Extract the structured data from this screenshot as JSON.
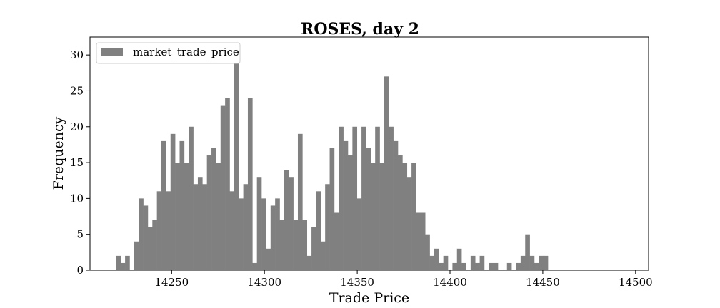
{
  "chart_data": {
    "type": "bar",
    "title": "ROSES, day 2",
    "xlabel": "Trade Price",
    "ylabel": "Frequency",
    "xlim": [
      14206,
      14507
    ],
    "ylim": [
      0,
      32.5
    ],
    "xticks": [
      14250,
      14300,
      14350,
      14400,
      14450,
      14500
    ],
    "yticks": [
      0,
      5,
      10,
      15,
      20,
      25,
      30
    ],
    "grid": false,
    "legend_position": "top-left",
    "bin_start": 14220,
    "bin_width": 2.45,
    "series": [
      {
        "name": "market_trade_price",
        "color": "#808080",
        "values": [
          2,
          1,
          2,
          0,
          4,
          10,
          9,
          6,
          7,
          11,
          18,
          11,
          19,
          15,
          18,
          15,
          20,
          12,
          13,
          12,
          16,
          17,
          15,
          23,
          24,
          11,
          31,
          10,
          12,
          24,
          1,
          13,
          10,
          3,
          9,
          10,
          7,
          14,
          13,
          7,
          19,
          7,
          2,
          6,
          11,
          4,
          12,
          17,
          8,
          20,
          18,
          16,
          20,
          10,
          20,
          17,
          15,
          20,
          15,
          27,
          20,
          18,
          16,
          15,
          13,
          15,
          8,
          8,
          5,
          2,
          3,
          1,
          2,
          0,
          1,
          3,
          1,
          0,
          2,
          1,
          2,
          0,
          1,
          1,
          0,
          0,
          1,
          0,
          1,
          2,
          5,
          2,
          1,
          2,
          2
        ]
      }
    ]
  }
}
